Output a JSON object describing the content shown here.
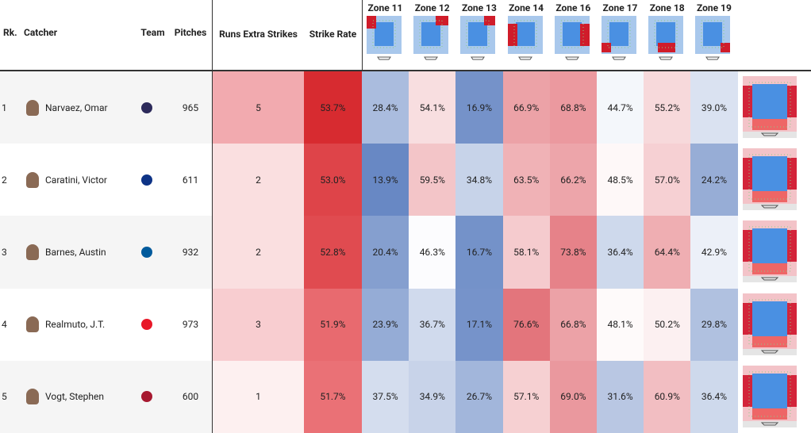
{
  "header": {
    "rank": "Rk.",
    "catcher": "Catcher",
    "team": "Team",
    "pitches": "Pitches",
    "runs": "Runs Extra Strikes",
    "strike_rate": "Strike Rate",
    "zones": [
      "Zone 11",
      "Zone 12",
      "Zone 13",
      "Zone 14",
      "Zone 16",
      "Zone 17",
      "Zone 18",
      "Zone 19"
    ]
  },
  "rows": [
    {
      "rank": "1",
      "catcher": "Narvaez, Omar",
      "pitches": "965",
      "runs": "5",
      "strike_rate": "53.7%",
      "zones": [
        "28.4%",
        "54.1%",
        "16.9%",
        "66.9%",
        "68.8%",
        "44.7%",
        "55.2%",
        "39.0%"
      ]
    },
    {
      "rank": "2",
      "catcher": "Caratini, Victor",
      "pitches": "611",
      "runs": "2",
      "strike_rate": "53.0%",
      "zones": [
        "13.9%",
        "59.5%",
        "34.8%",
        "63.5%",
        "66.2%",
        "48.5%",
        "57.0%",
        "24.2%"
      ]
    },
    {
      "rank": "3",
      "catcher": "Barnes, Austin",
      "pitches": "932",
      "runs": "2",
      "strike_rate": "52.8%",
      "zones": [
        "20.4%",
        "46.3%",
        "16.7%",
        "58.1%",
        "73.8%",
        "36.4%",
        "64.4%",
        "42.9%"
      ]
    },
    {
      "rank": "4",
      "catcher": "Realmuto, J.T.",
      "pitches": "973",
      "runs": "3",
      "strike_rate": "51.9%",
      "zones": [
        "23.9%",
        "36.7%",
        "17.1%",
        "76.6%",
        "66.8%",
        "48.1%",
        "50.2%",
        "29.8%"
      ]
    },
    {
      "rank": "5",
      "catcher": "Vogt, Stephen",
      "pitches": "600",
      "runs": "1",
      "strike_rate": "51.7%",
      "zones": [
        "37.5%",
        "34.9%",
        "26.7%",
        "57.1%",
        "69.0%",
        "31.6%",
        "60.9%",
        "36.4%"
      ]
    }
  ]
}
